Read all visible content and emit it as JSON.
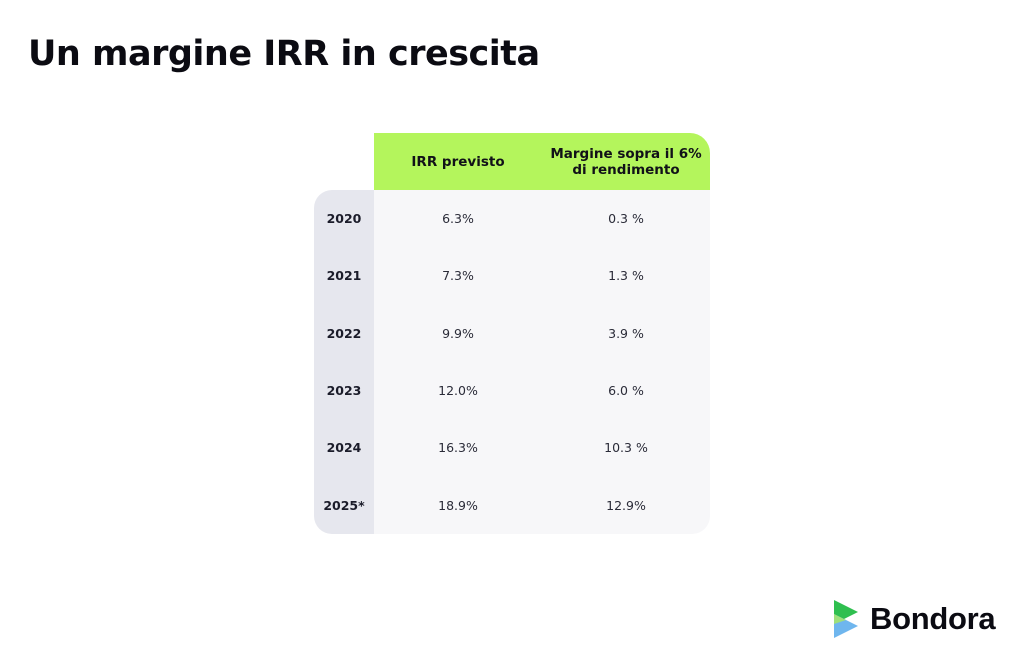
{
  "title": "Un margine IRR in crescita",
  "table": {
    "headers": {
      "irr": "IRR previsto",
      "margin_line1": "Margine sopra il 6%",
      "margin_line2": "di rendimento"
    },
    "rows": [
      {
        "year": "2020",
        "irr": "6.3%",
        "margin": "0.3 %"
      },
      {
        "year": "2021",
        "irr": "7.3%",
        "margin": "1.3 %"
      },
      {
        "year": "2022",
        "irr": "9.9%",
        "margin": "3.9 %"
      },
      {
        "year": "2023",
        "irr": "12.0%",
        "margin": "6.0 %"
      },
      {
        "year": "2024",
        "irr": "16.3%",
        "margin": "10.3 %"
      },
      {
        "year": "2025*",
        "irr": "18.9%",
        "margin": "12.9%"
      }
    ]
  },
  "brand": {
    "name": "Bondora",
    "icon": "bondora-logo-icon",
    "colors": {
      "green": "#2fbf4f",
      "lime": "#b4f55c",
      "blue": "#6fb6ee"
    }
  }
}
